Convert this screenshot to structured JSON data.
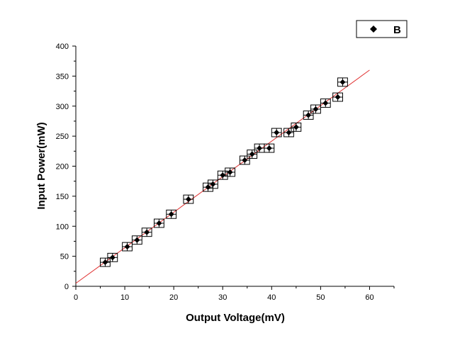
{
  "chart_data": {
    "type": "scatter",
    "title": "",
    "xlabel": "Output Voltage(mV)",
    "ylabel": "Input Power(mW)",
    "xlim": [
      0,
      65
    ],
    "ylim": [
      0,
      400
    ],
    "xticks": [
      0,
      10,
      20,
      30,
      40,
      50,
      60
    ],
    "yticks": [
      0,
      50,
      100,
      150,
      200,
      250,
      300,
      350,
      400
    ],
    "grid": false,
    "legend": {
      "position": "top-right",
      "entries": [
        "B"
      ]
    },
    "series": [
      {
        "name": "B",
        "marker": "diamond",
        "color": "#000000",
        "x_error": 1.0,
        "y_error": 7,
        "points": [
          [
            6.0,
            40
          ],
          [
            7.5,
            48
          ],
          [
            10.5,
            66
          ],
          [
            12.5,
            77
          ],
          [
            14.5,
            90
          ],
          [
            17.0,
            105
          ],
          [
            19.5,
            120
          ],
          [
            23.0,
            145
          ],
          [
            27.0,
            165
          ],
          [
            28.0,
            170
          ],
          [
            30.0,
            185
          ],
          [
            31.5,
            190
          ],
          [
            34.5,
            210
          ],
          [
            36.0,
            220
          ],
          [
            37.5,
            230
          ],
          [
            39.5,
            230
          ],
          [
            41.0,
            256
          ],
          [
            43.5,
            256
          ],
          [
            45.0,
            265
          ],
          [
            47.5,
            285
          ],
          [
            49.0,
            295
          ],
          [
            51.0,
            305
          ],
          [
            53.5,
            315
          ],
          [
            54.5,
            340
          ]
        ]
      }
    ],
    "fit_line": {
      "color": "#e03030",
      "x": [
        0,
        60
      ],
      "y": [
        5,
        360
      ]
    }
  }
}
